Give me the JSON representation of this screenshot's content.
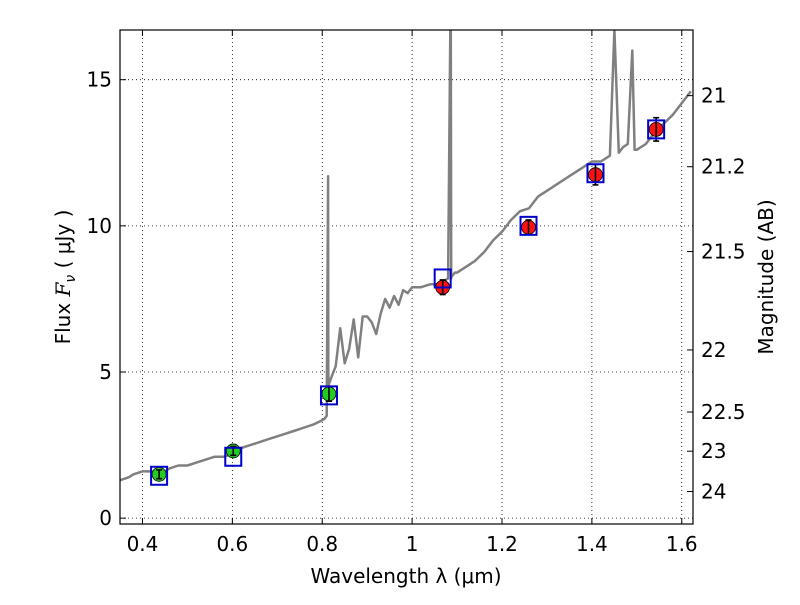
{
  "chart_data": {
    "type": "scatter",
    "title": "",
    "xlabel": "Wavelength  λ (μm)",
    "ylabel": {
      "prefix": "Flux  ",
      "italic_symbol": "F",
      "subscript": "ν",
      "unit": "  ( μJy )"
    },
    "ylabel_right": "Magnitude (AB)",
    "xlim": [
      0.35,
      1.625
    ],
    "ylim": [
      -0.2,
      16.7
    ],
    "grid": true,
    "grid_style": "dotted",
    "x_ticks": [
      {
        "value": 0.4,
        "label": "0.4"
      },
      {
        "value": 0.6,
        "label": "0.6"
      },
      {
        "value": 0.8,
        "label": "0.8"
      },
      {
        "value": 1.0,
        "label": "1"
      },
      {
        "value": 1.2,
        "label": "1.2"
      },
      {
        "value": 1.4,
        "label": "1.4"
      },
      {
        "value": 1.6,
        "label": "1.6"
      }
    ],
    "y_ticks": [
      {
        "value": 0,
        "label": "0"
      },
      {
        "value": 5,
        "label": "5"
      },
      {
        "value": 10,
        "label": "10"
      },
      {
        "value": 15,
        "label": "15"
      }
    ],
    "y_right_ticks": [
      {
        "mag": 21.0,
        "label": "21"
      },
      {
        "mag": 21.2,
        "label": "21.2"
      },
      {
        "mag": 21.5,
        "label": "21.5"
      },
      {
        "mag": 22.0,
        "label": "22"
      },
      {
        "mag": 22.5,
        "label": "22.5"
      },
      {
        "mag": 23.0,
        "label": "23"
      },
      {
        "mag": 24.0,
        "label": "24"
      }
    ],
    "series": [
      {
        "kind": "spectrum_line",
        "color": "#808080",
        "x": [
          0.35,
          0.37,
          0.38,
          0.4,
          0.42,
          0.44,
          0.46,
          0.48,
          0.5,
          0.52,
          0.54,
          0.56,
          0.58,
          0.6,
          0.62,
          0.64,
          0.66,
          0.68,
          0.7,
          0.72,
          0.74,
          0.76,
          0.78,
          0.8,
          0.805,
          0.81,
          0.813,
          0.8135,
          0.814,
          0.815,
          0.82,
          0.83,
          0.84,
          0.85,
          0.86,
          0.87,
          0.88,
          0.89,
          0.9,
          0.91,
          0.92,
          0.93,
          0.94,
          0.95,
          0.96,
          0.97,
          0.98,
          0.99,
          1.0,
          1.02,
          1.04,
          1.06,
          1.07,
          1.08,
          1.085,
          1.086,
          1.087,
          1.088,
          1.09,
          1.095,
          1.1,
          1.12,
          1.14,
          1.16,
          1.18,
          1.2,
          1.22,
          1.24,
          1.26,
          1.28,
          1.3,
          1.32,
          1.34,
          1.36,
          1.38,
          1.4,
          1.42,
          1.44,
          1.45,
          1.46,
          1.465,
          1.47,
          1.48,
          1.49,
          1.495,
          1.5,
          1.52,
          1.54,
          1.56,
          1.58,
          1.6,
          1.62
        ],
        "y": [
          1.3,
          1.4,
          1.5,
          1.6,
          1.6,
          1.5,
          1.7,
          1.8,
          1.8,
          1.9,
          2.0,
          2.1,
          2.1,
          2.2,
          2.4,
          2.5,
          2.6,
          2.7,
          2.8,
          2.9,
          3.0,
          3.1,
          3.2,
          3.35,
          3.4,
          3.5,
          11.7,
          5.0,
          4.5,
          4.6,
          4.8,
          5.2,
          6.5,
          5.3,
          5.8,
          6.8,
          5.5,
          6.9,
          6.9,
          6.7,
          6.3,
          7.0,
          7.5,
          7.2,
          7.6,
          7.3,
          7.8,
          7.7,
          7.9,
          7.9,
          8.0,
          8.0,
          8.1,
          8.2,
          16.7,
          16.7,
          8.2,
          8.3,
          8.3,
          8.4,
          8.4,
          8.6,
          8.8,
          9.1,
          9.5,
          9.8,
          10.2,
          10.5,
          10.6,
          11.0,
          11.2,
          11.4,
          11.6,
          11.8,
          12.0,
          12.2,
          12.2,
          12.4,
          16.7,
          12.5,
          12.6,
          12.7,
          12.8,
          16.0,
          12.6,
          12.6,
          12.8,
          13.2,
          13.5,
          13.8,
          14.2,
          14.6
        ]
      },
      {
        "kind": "photometry_optical",
        "marker": "circle",
        "color": "#22cc22",
        "x": [
          0.437,
          0.602,
          0.815
        ],
        "y": [
          1.5,
          2.3,
          4.25
        ],
        "yerr": [
          0.15,
          0.15,
          0.25
        ]
      },
      {
        "kind": "photometry_nir",
        "marker": "circle",
        "color": "#ff1111",
        "x": [
          1.068,
          1.259,
          1.408,
          1.543
        ],
        "y": [
          7.9,
          9.95,
          11.75,
          13.3
        ],
        "yerr": [
          0.25,
          0.25,
          0.35,
          0.4
        ]
      },
      {
        "kind": "model_fluxes",
        "marker": "square",
        "color": "#0000cc",
        "x": [
          0.437,
          0.602,
          0.815,
          1.068,
          1.259,
          1.408,
          1.543
        ],
        "y": [
          1.45,
          2.1,
          4.2,
          8.2,
          10.0,
          11.8,
          13.3
        ]
      }
    ]
  }
}
